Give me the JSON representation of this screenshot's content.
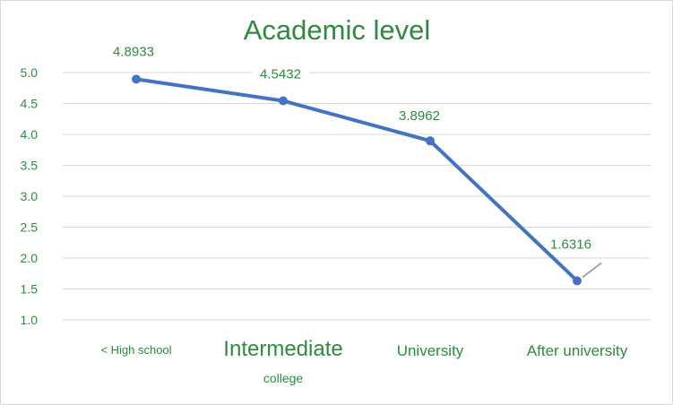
{
  "chart_data": {
    "type": "line",
    "title": "Academic level",
    "categories": [
      "< High school",
      "Intermediate",
      "University",
      "After university"
    ],
    "category_sublabels": [
      "",
      "college",
      "",
      ""
    ],
    "values": [
      4.8933,
      4.5432,
      3.8962,
      1.6316
    ],
    "data_labels": [
      "4.8933",
      "4.5432",
      "3.8962",
      "1.6316"
    ],
    "ylim": [
      1.0,
      5.0
    ],
    "yticks": [
      "1.0",
      "1.5",
      "2.0",
      "2.5",
      "3.0",
      "3.5",
      "4.0",
      "4.5",
      "5.0"
    ],
    "grid": true,
    "legend": "none",
    "colors": {
      "line": "#4472c4",
      "text": "#2e8b3e",
      "grid": "#d9d9d9"
    }
  }
}
